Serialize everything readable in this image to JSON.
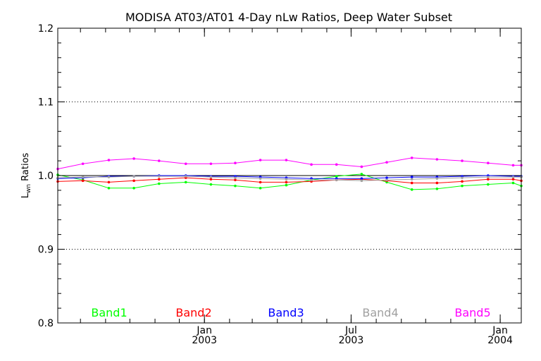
{
  "chart_data": {
    "type": "line",
    "title": "MODISA AT03/AT01 4-Day nLw Ratios, Deep Water Subset",
    "ylabel_main": "L",
    "ylabel_sub": "wn",
    "ylabel_rest": " Ratios",
    "ylim": [
      0.8,
      1.2
    ],
    "xlim": [
      "2002-07-04",
      "2004-01-27"
    ],
    "yticks": [
      0.8,
      0.9,
      1.0,
      1.1,
      1.2
    ],
    "ytick_labels": [
      "0.8",
      "0.9",
      "1.0",
      "1.1",
      "1.2"
    ],
    "grid": "dotted horizontal lines at 0.9, 1.0, 1.1",
    "xtick_labels": [
      {
        "date": "2003-01-01",
        "month": "Jan",
        "year": "2003"
      },
      {
        "date": "2003-07-01",
        "month": "Jul",
        "year": "2003"
      },
      {
        "date": "2004-01-01",
        "month": "Jan",
        "year": "2004"
      }
    ],
    "x": [
      "2002-07-04",
      "2002-08-04",
      "2002-09-05",
      "2002-10-06",
      "2002-11-06",
      "2002-12-09",
      "2003-01-09",
      "2003-02-08",
      "2003-03-11",
      "2003-04-12",
      "2003-05-13",
      "2003-06-13",
      "2003-07-14",
      "2003-08-14",
      "2003-09-14",
      "2003-10-15",
      "2003-11-15",
      "2003-12-17",
      "2004-01-17",
      "2004-01-27"
    ],
    "series": [
      {
        "name": "Band1",
        "color": "#00ff00",
        "values": [
          1.001,
          0.994,
          0.983,
          0.983,
          0.989,
          0.991,
          0.988,
          0.986,
          0.983,
          0.987,
          0.994,
          0.999,
          1.002,
          0.991,
          0.981,
          0.982,
          0.986,
          0.988,
          0.99,
          0.986
        ]
      },
      {
        "name": "Band2",
        "color": "#ff0000",
        "values": [
          0.992,
          0.993,
          0.991,
          0.993,
          0.995,
          0.997,
          0.995,
          0.994,
          0.991,
          0.991,
          0.992,
          0.994,
          0.995,
          0.993,
          0.99,
          0.99,
          0.992,
          0.995,
          0.995,
          0.993
        ]
      },
      {
        "name": "Band3",
        "color": "#0000ff",
        "values": [
          0.996,
          0.997,
          0.999,
          0.999,
          1.0,
          1.0,
          0.999,
          0.999,
          0.998,
          0.997,
          0.996,
          0.996,
          0.996,
          0.997,
          0.998,
          0.998,
          0.999,
          1.0,
          0.999,
          0.999
        ]
      },
      {
        "name": "Band4",
        "color": "#a0a0a0",
        "values": [
          0.997,
          0.998,
          0.998,
          0.999,
          0.999,
          0.999,
          0.998,
          0.997,
          0.996,
          0.995,
          0.994,
          0.994,
          0.993,
          0.994,
          0.995,
          0.996,
          0.997,
          0.998,
          0.998,
          0.998
        ]
      },
      {
        "name": "Band5",
        "color": "#ff00ff",
        "values": [
          1.009,
          1.016,
          1.021,
          1.023,
          1.02,
          1.016,
          1.016,
          1.017,
          1.021,
          1.021,
          1.015,
          1.015,
          1.012,
          1.018,
          1.024,
          1.022,
          1.02,
          1.017,
          1.014,
          1.014
        ]
      }
    ],
    "reference_line": {
      "y": 1.0,
      "color": "#000000"
    },
    "legend": [
      "Band1",
      "Band2",
      "Band3",
      "Band4",
      "Band5"
    ],
    "legend_placement": "bottom, inside plot"
  }
}
